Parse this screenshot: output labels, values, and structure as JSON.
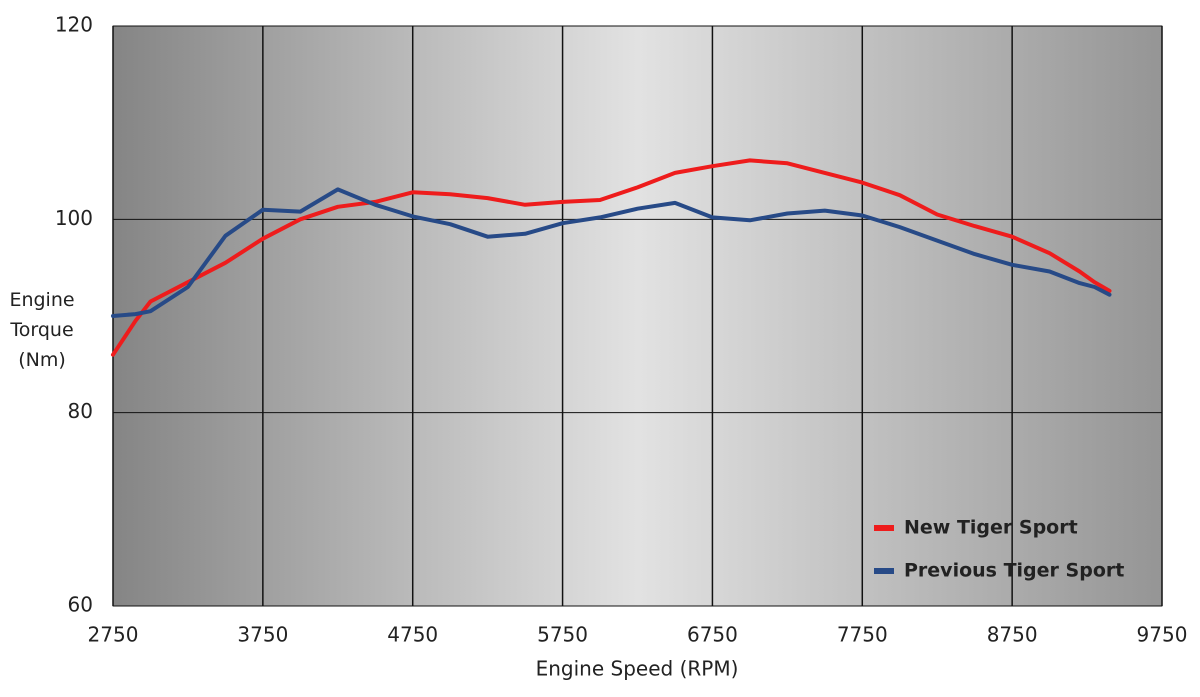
{
  "chart_data": {
    "type": "line",
    "xlabel": "Engine Speed (RPM)",
    "ylabel": "Engine Torque (Nm)",
    "x": [
      2750,
      2900,
      3000,
      3250,
      3500,
      3750,
      4000,
      4250,
      4500,
      4750,
      5000,
      5250,
      5500,
      5750,
      6000,
      6250,
      6500,
      6750,
      7000,
      7250,
      7500,
      7750,
      8000,
      8250,
      8500,
      8750,
      9000,
      9200,
      9300,
      9400
    ],
    "series": [
      {
        "name": "New Tiger Sport",
        "color": "#ee1c1c",
        "values": [
          86,
          89.5,
          91.5,
          93.5,
          95.5,
          98,
          100,
          101.3,
          101.8,
          102.8,
          102.6,
          102.2,
          101.5,
          101.8,
          102,
          103.3,
          104.8,
          105.5,
          106.1,
          105.8,
          104.8,
          103.8,
          102.5,
          100.5,
          99.3,
          98.2,
          96.5,
          94.6,
          93.5,
          92.6
        ]
      },
      {
        "name": "Previous Tiger Sport",
        "color": "#274a87",
        "values": [
          90,
          90.2,
          90.5,
          93,
          98.3,
          101,
          100.8,
          103.1,
          101.5,
          100.3,
          99.5,
          98.2,
          98.5,
          99.6,
          100.2,
          101.1,
          101.7,
          100.2,
          99.9,
          100.6,
          100.9,
          100.4,
          99.2,
          97.8,
          96.4,
          95.3,
          94.6,
          93.4,
          93.0,
          92.2
        ]
      }
    ],
    "xlim": [
      2750,
      9750
    ],
    "xticks": [
      2750,
      3750,
      4750,
      5750,
      6750,
      7750,
      8750,
      9750
    ],
    "ylim": [
      60,
      120
    ],
    "yticks": [
      60,
      80,
      100,
      120
    ],
    "grid": true,
    "legend": "lower right"
  }
}
